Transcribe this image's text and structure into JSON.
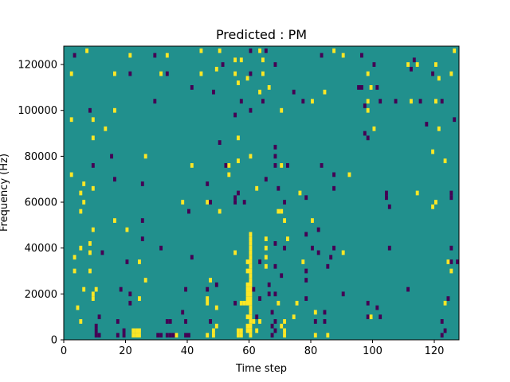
{
  "chart_data": {
    "type": "heatmap",
    "title": "Predicted : PM",
    "xlabel": "Time step",
    "ylabel": "Frequency (Hz)",
    "xlim": [
      0,
      128
    ],
    "ylim": [
      0,
      128000
    ],
    "x_ticks": [
      0,
      20,
      40,
      60,
      80,
      100,
      120
    ],
    "y_ticks": [
      0,
      20000,
      40000,
      60000,
      80000,
      100000,
      120000
    ],
    "grid": false,
    "colormap": "viridis",
    "colors": {
      "background": "#21908d",
      "low": "#440154",
      "high": "#fde725"
    },
    "cell_size_hz": 2000,
    "cells": [
      [
        2,
        72000,
        "high"
      ],
      [
        2,
        96000,
        "high"
      ],
      [
        2,
        116000,
        "high"
      ],
      [
        3,
        124000,
        "low"
      ],
      [
        3,
        30000,
        "high"
      ],
      [
        3,
        36000,
        "high"
      ],
      [
        4,
        14000,
        "high"
      ],
      [
        5,
        8000,
        "high"
      ],
      [
        5,
        40000,
        "high"
      ],
      [
        5,
        64000,
        "high"
      ],
      [
        5,
        56000,
        "high"
      ],
      [
        6,
        22000,
        "high"
      ],
      [
        6,
        60000,
        "high"
      ],
      [
        6,
        68000,
        "high"
      ],
      [
        7,
        126000,
        "high"
      ],
      [
        8,
        38000,
        "high"
      ],
      [
        8,
        30000,
        "high"
      ],
      [
        8,
        42000,
        "high"
      ],
      [
        8,
        100000,
        "low"
      ],
      [
        9,
        96000,
        "high"
      ],
      [
        9,
        88000,
        "high"
      ],
      [
        9,
        76000,
        "low"
      ],
      [
        9,
        66000,
        "high"
      ],
      [
        9,
        48000,
        "high"
      ],
      [
        9,
        20000,
        "high"
      ],
      [
        9,
        18000,
        "high"
      ],
      [
        10,
        22000,
        "high"
      ],
      [
        10,
        2000,
        "low"
      ],
      [
        10,
        4000,
        "low"
      ],
      [
        10,
        6000,
        "low"
      ],
      [
        11,
        2000,
        "low"
      ],
      [
        11,
        10000,
        "low"
      ],
      [
        12,
        38000,
        "low"
      ],
      [
        13,
        92000,
        "high"
      ],
      [
        15,
        80000,
        "low"
      ],
      [
        16,
        70000,
        "low"
      ],
      [
        16,
        52000,
        "high"
      ],
      [
        16,
        116000,
        "high"
      ],
      [
        16,
        100000,
        "high"
      ],
      [
        17,
        8000,
        "low"
      ],
      [
        17,
        2000,
        "low"
      ],
      [
        18,
        22000,
        "low"
      ],
      [
        19,
        2000,
        "low"
      ],
      [
        19,
        4000,
        "low"
      ],
      [
        20,
        48000,
        "high"
      ],
      [
        20,
        34000,
        "low"
      ],
      [
        21,
        124000,
        "high"
      ],
      [
        21,
        116000,
        "low"
      ],
      [
        21,
        20000,
        "low"
      ],
      [
        21,
        16000,
        "low"
      ],
      [
        22,
        2000,
        "high"
      ],
      [
        22,
        4000,
        "high"
      ],
      [
        23,
        2000,
        "high"
      ],
      [
        23,
        4000,
        "high"
      ],
      [
        24,
        2000,
        "high"
      ],
      [
        24,
        4000,
        "high"
      ],
      [
        24,
        18000,
        "high"
      ],
      [
        24,
        34000,
        "high"
      ],
      [
        25,
        44000,
        "low"
      ],
      [
        25,
        52000,
        "low"
      ],
      [
        25,
        68000,
        "low"
      ],
      [
        26,
        80000,
        "high"
      ],
      [
        26,
        26000,
        "high"
      ],
      [
        29,
        104000,
        "low"
      ],
      [
        29,
        124000,
        "low"
      ],
      [
        30,
        2000,
        "low"
      ],
      [
        31,
        2000,
        "low"
      ],
      [
        31,
        40000,
        "low"
      ],
      [
        31,
        116000,
        "high"
      ],
      [
        33,
        2000,
        "low"
      ],
      [
        33,
        8000,
        "low"
      ],
      [
        33,
        116000,
        "low"
      ],
      [
        33,
        124000,
        "high"
      ],
      [
        34,
        2000,
        "low"
      ],
      [
        34,
        8000,
        "low"
      ],
      [
        35,
        2000,
        "low"
      ],
      [
        36,
        2000,
        "high"
      ],
      [
        38,
        12000,
        "low"
      ],
      [
        38,
        60000,
        "high"
      ],
      [
        39,
        2000,
        "low"
      ],
      [
        39,
        8000,
        "low"
      ],
      [
        39,
        22000,
        "low"
      ],
      [
        40,
        2000,
        "low"
      ],
      [
        40,
        56000,
        "low"
      ],
      [
        41,
        36000,
        "low"
      ],
      [
        41,
        110000,
        "low"
      ],
      [
        41,
        76000,
        "high"
      ],
      [
        44,
        126000,
        "high"
      ],
      [
        44,
        116000,
        "high"
      ],
      [
        46,
        22000,
        "low"
      ],
      [
        46,
        18000,
        "high"
      ],
      [
        46,
        16000,
        "high"
      ],
      [
        46,
        2000,
        "high"
      ],
      [
        46,
        60000,
        "high"
      ],
      [
        46,
        68000,
        "low"
      ],
      [
        47,
        60000,
        "low"
      ],
      [
        47,
        26000,
        "high"
      ],
      [
        47,
        8000,
        "low"
      ],
      [
        48,
        108000,
        "low"
      ],
      [
        48,
        4000,
        "high"
      ],
      [
        48,
        2000,
        "high"
      ],
      [
        49,
        118000,
        "high"
      ],
      [
        49,
        24000,
        "low"
      ],
      [
        49,
        14000,
        "high"
      ],
      [
        49,
        6000,
        "high"
      ],
      [
        50,
        126000,
        "high"
      ],
      [
        50,
        56000,
        "high"
      ],
      [
        50,
        86000,
        "low"
      ],
      [
        51,
        120000,
        "low"
      ],
      [
        52,
        76000,
        "low"
      ],
      [
        53,
        76000,
        "high"
      ],
      [
        53,
        72000,
        "high"
      ],
      [
        55,
        122000,
        "high"
      ],
      [
        55,
        116000,
        "high"
      ],
      [
        55,
        98000,
        "low"
      ],
      [
        55,
        62000,
        "low"
      ],
      [
        55,
        60000,
        "low"
      ],
      [
        55,
        38000,
        "high"
      ],
      [
        55,
        16000,
        "low"
      ],
      [
        56,
        112000,
        "high"
      ],
      [
        56,
        88000,
        "high"
      ],
      [
        56,
        78000,
        "high"
      ],
      [
        56,
        64000,
        "low"
      ],
      [
        56,
        2000,
        "high"
      ],
      [
        56,
        4000,
        "high"
      ],
      [
        57,
        2000,
        "high"
      ],
      [
        57,
        4000,
        "high"
      ],
      [
        57,
        16000,
        "high"
      ],
      [
        57,
        104000,
        "low"
      ],
      [
        57,
        122000,
        "high"
      ],
      [
        58,
        16000,
        "high"
      ],
      [
        58,
        60000,
        "low"
      ],
      [
        59,
        4000,
        "high"
      ],
      [
        59,
        6000,
        "high"
      ],
      [
        59,
        10000,
        "high"
      ],
      [
        59,
        16000,
        "high"
      ],
      [
        59,
        18000,
        "high"
      ],
      [
        59,
        20000,
        "high"
      ],
      [
        59,
        22000,
        "high"
      ],
      [
        59,
        24000,
        "high"
      ],
      [
        59,
        30000,
        "high"
      ],
      [
        59,
        34000,
        "high"
      ],
      [
        59,
        114000,
        "high"
      ],
      [
        60,
        2000,
        "high"
      ],
      [
        60,
        4000,
        "high"
      ],
      [
        60,
        6000,
        "high"
      ],
      [
        60,
        8000,
        "high"
      ],
      [
        60,
        10000,
        "high"
      ],
      [
        60,
        12000,
        "high"
      ],
      [
        60,
        14000,
        "high"
      ],
      [
        60,
        16000,
        "high"
      ],
      [
        60,
        18000,
        "high"
      ],
      [
        60,
        20000,
        "high"
      ],
      [
        60,
        22000,
        "high"
      ],
      [
        60,
        24000,
        "high"
      ],
      [
        60,
        26000,
        "high"
      ],
      [
        60,
        28000,
        "high"
      ],
      [
        60,
        30000,
        "high"
      ],
      [
        60,
        32000,
        "high"
      ],
      [
        60,
        34000,
        "high"
      ],
      [
        60,
        36000,
        "high"
      ],
      [
        60,
        38000,
        "high"
      ],
      [
        60,
        40000,
        "high"
      ],
      [
        60,
        42000,
        "high"
      ],
      [
        60,
        44000,
        "high"
      ],
      [
        60,
        46000,
        "high"
      ],
      [
        60,
        116000,
        "low"
      ],
      [
        60,
        126000,
        "low"
      ],
      [
        60,
        100000,
        "low"
      ],
      [
        60,
        80000,
        "high"
      ],
      [
        61,
        8000,
        "high"
      ],
      [
        61,
        22000,
        "low"
      ],
      [
        62,
        10000,
        "low"
      ],
      [
        62,
        4000,
        "high"
      ],
      [
        62,
        66000,
        "high"
      ],
      [
        63,
        8000,
        "high"
      ],
      [
        63,
        18000,
        "low"
      ],
      [
        63,
        34000,
        "low"
      ],
      [
        63,
        108000,
        "high"
      ],
      [
        63,
        126000,
        "high"
      ],
      [
        64,
        104000,
        "low"
      ],
      [
        64,
        116000,
        "high"
      ],
      [
        64,
        122000,
        "high"
      ],
      [
        65,
        32000,
        "high"
      ],
      [
        65,
        36000,
        "high"
      ],
      [
        65,
        40000,
        "high"
      ],
      [
        65,
        44000,
        "high"
      ],
      [
        65,
        70000,
        "low"
      ],
      [
        65,
        126000,
        "low"
      ],
      [
        66,
        20000,
        "low"
      ],
      [
        66,
        24000,
        "low"
      ],
      [
        66,
        110000,
        "high"
      ],
      [
        67,
        12000,
        "low"
      ],
      [
        67,
        2000,
        "low"
      ],
      [
        67,
        6000,
        "low"
      ],
      [
        68,
        4000,
        "low"
      ],
      [
        68,
        8000,
        "low"
      ],
      [
        68,
        20000,
        "low"
      ],
      [
        68,
        32000,
        "low"
      ],
      [
        68,
        42000,
        "low"
      ],
      [
        68,
        84000,
        "low"
      ],
      [
        68,
        80000,
        "low"
      ],
      [
        68,
        76000,
        "low"
      ],
      [
        68,
        120000,
        "low"
      ],
      [
        69,
        16000,
        "high"
      ],
      [
        69,
        56000,
        "high"
      ],
      [
        69,
        66000,
        "low"
      ],
      [
        70,
        6000,
        "high"
      ],
      [
        70,
        56000,
        "high"
      ],
      [
        70,
        100000,
        "high"
      ],
      [
        70,
        76000,
        "high"
      ],
      [
        70,
        28000,
        "low"
      ],
      [
        71,
        4000,
        "high"
      ],
      [
        71,
        2000,
        "high"
      ],
      [
        71,
        8000,
        "high"
      ],
      [
        71,
        52000,
        "high"
      ],
      [
        71,
        60000,
        "low"
      ],
      [
        71,
        40000,
        "low"
      ],
      [
        72,
        44000,
        "high"
      ],
      [
        72,
        76000,
        "low"
      ],
      [
        74,
        10000,
        "high"
      ],
      [
        74,
        108000,
        "low"
      ],
      [
        75,
        16000,
        "high"
      ],
      [
        76,
        64000,
        "high"
      ],
      [
        77,
        34000,
        "high"
      ],
      [
        77,
        104000,
        "low"
      ],
      [
        78,
        30000,
        "low"
      ],
      [
        78,
        26000,
        "low"
      ],
      [
        78,
        46000,
        "low"
      ],
      [
        78,
        18000,
        "low"
      ],
      [
        78,
        62000,
        "low"
      ],
      [
        80,
        40000,
        "low"
      ],
      [
        80,
        52000,
        "high"
      ],
      [
        80,
        104000,
        "high"
      ],
      [
        81,
        8000,
        "low"
      ],
      [
        81,
        12000,
        "high"
      ],
      [
        81,
        2000,
        "high"
      ],
      [
        82,
        38000,
        "low"
      ],
      [
        82,
        48000,
        "low"
      ],
      [
        83,
        76000,
        "low"
      ],
      [
        83,
        124000,
        "low"
      ],
      [
        84,
        12000,
        "low"
      ],
      [
        84,
        8000,
        "low"
      ],
      [
        84,
        108000,
        "high"
      ],
      [
        85,
        32000,
        "low"
      ],
      [
        85,
        2000,
        "high"
      ],
      [
        86,
        36000,
        "low"
      ],
      [
        87,
        72000,
        "low"
      ],
      [
        87,
        66000,
        "low"
      ],
      [
        87,
        40000,
        "low"
      ],
      [
        87,
        126000,
        "high"
      ],
      [
        90,
        20000,
        "low"
      ],
      [
        90,
        38000,
        "high"
      ],
      [
        90,
        124000,
        "high"
      ],
      [
        92,
        72000,
        "high"
      ],
      [
        95,
        110000,
        "low"
      ],
      [
        96,
        110000,
        "low"
      ],
      [
        96,
        124000,
        "low"
      ],
      [
        97,
        102000,
        "low"
      ],
      [
        97,
        90000,
        "low"
      ],
      [
        98,
        88000,
        "low"
      ],
      [
        98,
        16000,
        "low"
      ],
      [
        98,
        10000,
        "low"
      ],
      [
        98,
        116000,
        "high"
      ],
      [
        98,
        104000,
        "high"
      ],
      [
        98,
        100000,
        "high"
      ],
      [
        99,
        10000,
        "high"
      ],
      [
        99,
        110000,
        "high"
      ],
      [
        100,
        92000,
        "high"
      ],
      [
        100,
        120000,
        "low"
      ],
      [
        101,
        14000,
        "low"
      ],
      [
        101,
        110000,
        "low"
      ],
      [
        102,
        10000,
        "low"
      ],
      [
        102,
        104000,
        "low"
      ],
      [
        104,
        64000,
        "low"
      ],
      [
        104,
        62000,
        "low"
      ],
      [
        105,
        40000,
        "low"
      ],
      [
        105,
        58000,
        "low"
      ],
      [
        107,
        104000,
        "low"
      ],
      [
        111,
        22000,
        "low"
      ],
      [
        111,
        120000,
        "high"
      ],
      [
        112,
        104000,
        "high"
      ],
      [
        112,
        118000,
        "low"
      ],
      [
        113,
        122000,
        "low"
      ],
      [
        114,
        64000,
        "high"
      ],
      [
        114,
        120000,
        "high"
      ],
      [
        115,
        104000,
        "low"
      ],
      [
        117,
        94000,
        "low"
      ],
      [
        119,
        82000,
        "high"
      ],
      [
        119,
        58000,
        "high"
      ],
      [
        119,
        116000,
        "low"
      ],
      [
        120,
        60000,
        "high"
      ],
      [
        120,
        120000,
        "high"
      ],
      [
        120,
        104000,
        "high"
      ],
      [
        121,
        92000,
        "high"
      ],
      [
        121,
        114000,
        "high"
      ],
      [
        122,
        104000,
        "low"
      ],
      [
        122,
        2000,
        "low"
      ],
      [
        122,
        8000,
        "low"
      ],
      [
        123,
        4000,
        "low"
      ],
      [
        123,
        78000,
        "high"
      ],
      [
        123,
        16000,
        "high"
      ],
      [
        124,
        34000,
        "high"
      ],
      [
        124,
        18000,
        "low"
      ],
      [
        125,
        116000,
        "high"
      ],
      [
        125,
        64000,
        "low"
      ],
      [
        125,
        62000,
        "low"
      ],
      [
        125,
        40000,
        "low"
      ],
      [
        125,
        34000,
        "low"
      ],
      [
        125,
        30000,
        "high"
      ],
      [
        126,
        126000,
        "high"
      ],
      [
        126,
        96000,
        "low"
      ],
      [
        127,
        34000,
        "low"
      ]
    ]
  }
}
